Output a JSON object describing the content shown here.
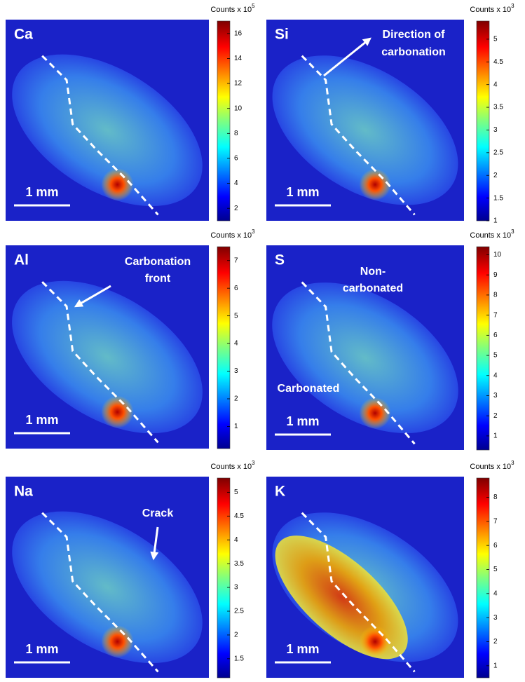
{
  "panels": [
    {
      "element": "Ca",
      "colorbar": {
        "title": "Counts x 10",
        "exponent": "5",
        "range": [
          1,
          17
        ],
        "ticks": [
          2,
          4,
          6,
          8,
          10,
          12,
          14,
          16
        ]
      },
      "scale_bar": "1 mm",
      "annotations": []
    },
    {
      "element": "Si",
      "colorbar": {
        "title": "Counts x 10",
        "exponent": "3",
        "range": [
          1,
          5.4
        ],
        "ticks": [
          1,
          1.5,
          2,
          2.5,
          3,
          3.5,
          4,
          4.5,
          5
        ]
      },
      "scale_bar": "1 mm",
      "annotations": [
        {
          "lines": [
            "Direction of",
            "carbonation"
          ]
        }
      ]
    },
    {
      "element": "Al",
      "colorbar": {
        "title": "Counts x 10",
        "exponent": "3",
        "range": [
          0.2,
          7.5
        ],
        "ticks": [
          1,
          2,
          3,
          4,
          5,
          6,
          7
        ]
      },
      "scale_bar": "1 mm",
      "annotations": [
        {
          "lines": [
            "Carbonation",
            "front"
          ]
        }
      ]
    },
    {
      "element": "S",
      "colorbar": {
        "title": "Counts x 10",
        "exponent": "3",
        "range": [
          0.3,
          10.4
        ],
        "ticks": [
          1,
          2,
          3,
          4,
          5,
          6,
          7,
          8,
          9,
          10
        ]
      },
      "scale_bar": "1 mm",
      "annotations": [
        {
          "lines": [
            "Non-",
            "carbonated"
          ]
        },
        {
          "lines": [
            "Carbonated"
          ]
        }
      ]
    },
    {
      "element": "Na",
      "colorbar": {
        "title": "Counts x 10",
        "exponent": "3",
        "range": [
          1.1,
          5.3
        ],
        "ticks": [
          1.5,
          2,
          2.5,
          3,
          3.5,
          4,
          4.5,
          5
        ]
      },
      "scale_bar": "1 mm",
      "annotations": [
        {
          "lines": [
            "Crack"
          ]
        }
      ]
    },
    {
      "element": "K",
      "colorbar": {
        "title": "Counts x 10",
        "exponent": "3",
        "range": [
          0.5,
          8.8
        ],
        "ticks": [
          1,
          2,
          3,
          4,
          5,
          6,
          7,
          8
        ]
      },
      "scale_bar": "1 mm",
      "annotations": []
    }
  ]
}
